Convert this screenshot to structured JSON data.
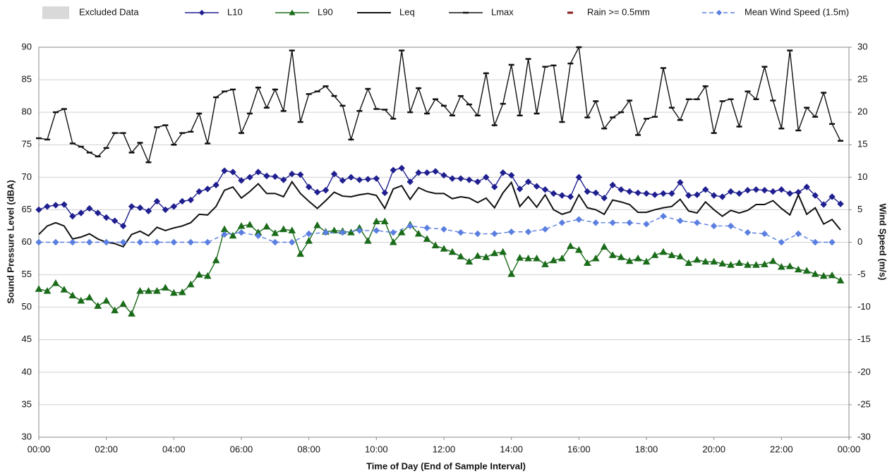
{
  "chart_data": {
    "type": "line",
    "xlabel": "Time of Day (End of Sample Interval)",
    "ylabel": "Sound Pressure Level (dBA)",
    "y2label": "Wind Speed (m/s)",
    "xlim": [
      0,
      24
    ],
    "xticks": [
      {
        "value": 0,
        "label": "00:00"
      },
      {
        "value": 2,
        "label": "02:00"
      },
      {
        "value": 4,
        "label": "04:00"
      },
      {
        "value": 6,
        "label": "06:00"
      },
      {
        "value": 8,
        "label": "08:00"
      },
      {
        "value": 10,
        "label": "10:00"
      },
      {
        "value": 12,
        "label": "12:00"
      },
      {
        "value": 14,
        "label": "14:00"
      },
      {
        "value": 16,
        "label": "16:00"
      },
      {
        "value": 18,
        "label": "18:00"
      },
      {
        "value": 20,
        "label": "20:00"
      },
      {
        "value": 22,
        "label": "22:00"
      },
      {
        "value": 24,
        "label": "00:00"
      }
    ],
    "ylim": [
      30,
      90
    ],
    "yticks": [
      30,
      35,
      40,
      45,
      50,
      55,
      60,
      65,
      70,
      75,
      80,
      85,
      90
    ],
    "y2lim": [
      -30,
      30
    ],
    "y2ticks": [
      -30,
      -25,
      -20,
      -15,
      -10,
      -5,
      0,
      5,
      10,
      15,
      20,
      25,
      30
    ],
    "grid": true,
    "legend_only": [
      {
        "name": "Excluded Data",
        "color": "#d9d9d9"
      },
      {
        "name": "Rain >= 0.5mm",
        "color": "#8b1a1a"
      }
    ],
    "x": [
      0,
      0.25,
      0.5,
      0.75,
      1,
      1.25,
      1.5,
      1.75,
      2,
      2.25,
      2.5,
      2.75,
      3,
      3.25,
      3.5,
      3.75,
      4,
      4.25,
      4.5,
      4.75,
      5,
      5.25,
      5.5,
      5.75,
      6,
      6.25,
      6.5,
      6.75,
      7,
      7.25,
      7.5,
      7.75,
      8,
      8.25,
      8.5,
      8.75,
      9,
      9.25,
      9.5,
      9.75,
      10,
      10.25,
      10.5,
      10.75,
      11,
      11.25,
      11.5,
      11.75,
      12,
      12.25,
      12.5,
      12.75,
      13,
      13.25,
      13.5,
      13.75,
      14,
      14.25,
      14.5,
      14.75,
      15,
      15.25,
      15.5,
      15.75,
      16,
      16.25,
      16.5,
      16.75,
      17,
      17.25,
      17.5,
      17.75,
      18,
      18.25,
      18.5,
      18.75,
      19,
      19.25,
      19.5,
      19.75,
      20,
      20.25,
      20.5,
      20.75,
      21,
      21.25,
      21.5,
      21.75,
      22,
      22.25,
      22.5,
      22.75,
      23,
      23.25,
      23.5,
      23.75
    ],
    "series": [
      {
        "name": "L10",
        "color": "#1f1f8f",
        "marker": "diamond",
        "values": [
          65,
          65.5,
          65.7,
          65.8,
          64,
          64.5,
          65.2,
          64.5,
          63.8,
          63.3,
          62.5,
          65.5,
          65.3,
          64.8,
          66.3,
          65,
          65.5,
          66.3,
          66.5,
          67.8,
          68.2,
          68.8,
          71,
          70.8,
          69.5,
          70,
          70.8,
          70.2,
          70.1,
          69.6,
          70.5,
          70.4,
          68.5,
          67.7,
          68,
          70.5,
          69.5,
          70,
          69.6,
          69.7,
          69.8,
          67.6,
          71.1,
          71.4,
          69.3,
          70.7,
          70.7,
          70.9,
          70.3,
          69.8,
          69.8,
          69.6,
          69.3,
          70,
          68.5,
          70.7,
          70.3,
          68.2,
          69.3,
          68.6,
          68.1,
          67.5,
          67.2,
          67,
          70,
          67.8,
          67.6,
          66.8,
          68.8,
          68.1,
          67.8,
          67.6,
          67.5,
          67.3,
          67.5,
          67.5,
          69.2,
          67.2,
          67.3,
          68.1,
          67.2,
          67,
          67.8,
          67.5,
          68,
          68.1,
          68,
          67.8,
          68.1,
          67.5,
          67.7,
          68.5,
          67.2,
          65.8,
          67,
          65.9
        ]
      },
      {
        "name": "L90",
        "color": "#1a6b1a",
        "marker": "triangle",
        "values": [
          52.8,
          52.5,
          53.7,
          52.7,
          51.8,
          51,
          51.5,
          50.2,
          51,
          49.5,
          50.5,
          49,
          52.5,
          52.5,
          52.5,
          53,
          52.2,
          52.3,
          53.5,
          55,
          54.8,
          57.2,
          62,
          61,
          62.5,
          62.7,
          61.5,
          62.4,
          61.4,
          62,
          61.8,
          58.2,
          60.2,
          62.6,
          61.6,
          61.8,
          61.7,
          61.5,
          62.2,
          60.2,
          63.2,
          63.2,
          60,
          61.5,
          62.7,
          61.3,
          60.5,
          59.5,
          59,
          58.5,
          57.8,
          57,
          57.9,
          57.7,
          58.3,
          58.5,
          55.1,
          57.6,
          57.5,
          57.5,
          56.6,
          57.2,
          57.5,
          59.4,
          58.8,
          56.8,
          57.5,
          59.3,
          58,
          57.7,
          57.1,
          57.5,
          57,
          58,
          58.5,
          58,
          57.8,
          56.8,
          57.3,
          57,
          57,
          56.7,
          56.5,
          56.8,
          56.5,
          56.5,
          56.6,
          57.1,
          56.2,
          56.3,
          55.8,
          55.6,
          55.1,
          54.8,
          54.9,
          54.1
        ]
      },
      {
        "name": "Leq",
        "color": "#111111",
        "marker": "none",
        "values": [
          61.2,
          62.5,
          63,
          62.5,
          60.5,
          60.8,
          61.3,
          60.5,
          60,
          59.8,
          59.3,
          61.2,
          61.7,
          61,
          62.3,
          61.8,
          62.2,
          62.5,
          63,
          64.3,
          64.2,
          65.5,
          68,
          68.5,
          66.8,
          67.8,
          69,
          67.5,
          67.5,
          67,
          69.3,
          67.5,
          66.3,
          65.2,
          66.4,
          67.7,
          67.1,
          67,
          67.3,
          67.5,
          67.2,
          65.2,
          68.2,
          68.7,
          66.6,
          68.4,
          67.8,
          67.5,
          67.5,
          66.7,
          67,
          66.8,
          66.1,
          66.8,
          65.3,
          67.6,
          69.2,
          65.5,
          67,
          65.4,
          67.3,
          65,
          64.3,
          64.7,
          67.3,
          65.3,
          65,
          64.3,
          66.5,
          66.2,
          65.8,
          64.6,
          64.6,
          65,
          65.3,
          65.5,
          66.6,
          64.8,
          64.5,
          66.2,
          65,
          64,
          64.9,
          64.5,
          64.9,
          65.8,
          65.8,
          66.4,
          65.2,
          64.2,
          67.3,
          64.3,
          65.3,
          62.8,
          63.5,
          61.9
        ]
      },
      {
        "name": "Lmax",
        "color": "#111111",
        "marker": "dash",
        "values": [
          76,
          75.8,
          80,
          80.5,
          75.2,
          74.7,
          73.8,
          73.2,
          74.5,
          76.8,
          76.8,
          73.8,
          75.3,
          72.3,
          77.7,
          78,
          75,
          76.8,
          77,
          79.8,
          75.2,
          82.3,
          83.2,
          83.5,
          76.8,
          79.8,
          83.8,
          80.7,
          83.5,
          80.2,
          89.5,
          78.5,
          82.8,
          83.2,
          84,
          82.5,
          81,
          75.8,
          80.2,
          83.6,
          80.5,
          80.4,
          79,
          89.5,
          80,
          83.7,
          79.8,
          82,
          81,
          79.5,
          82.5,
          81.2,
          79.5,
          86,
          78,
          81.3,
          87.3,
          79.5,
          88.2,
          79.8,
          87,
          87.2,
          78.5,
          87.5,
          90,
          79.2,
          81.7,
          77.5,
          79.2,
          80,
          81.8,
          76.5,
          79,
          79.3,
          86.8,
          80.7,
          78.8,
          82,
          82,
          84,
          76.8,
          81.7,
          82,
          77.8,
          83.2,
          82,
          87,
          81.8,
          77.5,
          89.5,
          77.2,
          80.7,
          79.3,
          83,
          78.2,
          75.6
        ]
      },
      {
        "name": "Mean Wind Speed (1.5m)",
        "color": "#5b7fe0",
        "marker": "diamond",
        "dashed": true,
        "axis": "y2",
        "x": [
          0,
          0.5,
          1,
          1.5,
          2,
          2.5,
          3,
          3.5,
          4,
          4.5,
          5,
          5.5,
          6,
          6.5,
          7,
          7.5,
          8,
          8.5,
          9,
          9.5,
          10,
          10.5,
          11,
          11.5,
          12,
          12.5,
          13,
          13.5,
          14,
          14.5,
          15,
          15.5,
          16,
          16.5,
          17,
          17.5,
          18,
          18.5,
          19,
          19.5,
          20,
          20.5,
          21,
          21.5,
          22,
          22.5,
          23,
          23.5
        ],
        "values": [
          0,
          0,
          0,
          0,
          0,
          0,
          0,
          0,
          0,
          0,
          0,
          1.2,
          1.5,
          1,
          0,
          0,
          1.3,
          1.5,
          1.5,
          1.8,
          1.8,
          1.5,
          2.5,
          2.2,
          2,
          1.5,
          1.3,
          1.3,
          1.6,
          1.6,
          2,
          3,
          3.5,
          3,
          3,
          3,
          2.8,
          4,
          3.3,
          3,
          2.5,
          2.5,
          1.5,
          1.3,
          0,
          1.3,
          0,
          0
        ]
      }
    ]
  }
}
